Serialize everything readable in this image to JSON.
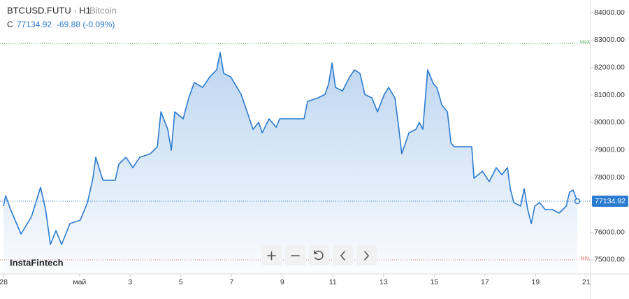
{
  "chart_data": {
    "type": "line",
    "title": "BTCUSD.FUTU · H1",
    "subtitle": "Bitcoin",
    "price_label": "C",
    "last_price": 77134.92,
    "last_price_label": "77134.92",
    "change": "-69.88 (-0.09%)",
    "watermark": "InstaFintech",
    "max_line": {
      "label": "MAX",
      "value": 82880,
      "color": "#4caf50"
    },
    "min_line": {
      "label": "MIN",
      "value": 75000,
      "color": "#e57373"
    },
    "xlim": [
      -0.14,
      23.17
    ],
    "ylim": [
      74490,
      84460
    ],
    "xticks": [
      {
        "value": 0,
        "label": "28"
      },
      {
        "value": 3,
        "label": "май"
      },
      {
        "value": 5,
        "label": "3"
      },
      {
        "value": 7,
        "label": "5"
      },
      {
        "value": 9,
        "label": "7"
      },
      {
        "value": 11,
        "label": "9"
      },
      {
        "value": 13,
        "label": "11"
      },
      {
        "value": 15,
        "label": "13"
      },
      {
        "value": 17,
        "label": "15"
      },
      {
        "value": 19,
        "label": "17"
      },
      {
        "value": 21,
        "label": "19"
      },
      {
        "value": 23,
        "label": "21"
      }
    ],
    "yticks": [
      {
        "value": 75000,
        "label": "75000.00"
      },
      {
        "value": 76000,
        "label": "76000.00"
      },
      {
        "value": 77000,
        "label": "77000.00"
      },
      {
        "value": 78000,
        "label": "78000.00"
      },
      {
        "value": 79000,
        "label": "79000.00"
      },
      {
        "value": 80000,
        "label": "80000.00"
      },
      {
        "value": 81000,
        "label": "81000.00"
      },
      {
        "value": 82000,
        "label": "82000.00"
      },
      {
        "value": 83000,
        "label": "83000.00"
      },
      {
        "value": 84000,
        "label": "84000.00"
      }
    ],
    "grid": false,
    "series": [
      {
        "color": "#2b7bd0",
        "x": [
          0,
          0.08,
          0.28,
          0.69,
          1.1,
          1.46,
          1.66,
          1.85,
          2.07,
          2.29,
          2.62,
          3.03,
          3.31,
          3.53,
          3.64,
          3.92,
          4.41,
          4.55,
          4.83,
          5.1,
          5.38,
          5.79,
          6.07,
          6.21,
          6.48,
          6.62,
          6.76,
          7.09,
          7.31,
          7.53,
          7.86,
          8.14,
          8.41,
          8.55,
          8.69,
          8.97,
          9.38,
          9.66,
          9.85,
          10.07,
          10.21,
          10.48,
          10.76,
          10.9,
          11.86,
          12.0,
          12.41,
          12.69,
          12.83,
          12.97,
          13.1,
          13.38,
          13.66,
          13.85,
          14.07,
          14.26,
          14.54,
          14.76,
          15.03,
          15.2,
          15.45,
          15.59,
          15.72,
          16.0,
          16.28,
          16.41,
          16.55,
          16.74,
          16.97,
          17.1,
          17.3,
          17.52,
          17.66,
          17.79,
          18.48,
          18.57,
          18.9,
          19.17,
          19.45,
          19.67,
          19.89,
          20.0,
          20.14,
          20.41,
          20.55,
          20.69,
          20.83,
          20.97,
          21.16,
          21.38,
          21.66,
          21.93,
          22.21,
          22.34,
          22.48,
          22.65
        ],
        "values": [
          76956,
          77337,
          76829,
          75939,
          76574,
          77642,
          76829,
          75557,
          76066,
          75557,
          76320,
          76447,
          77083,
          77973,
          78736,
          77897,
          77897,
          78482,
          78736,
          78355,
          78736,
          78863,
          79117,
          80389,
          79753,
          78990,
          80389,
          80135,
          80898,
          81457,
          81279,
          81660,
          81915,
          82550,
          81788,
          81660,
          81025,
          80262,
          79753,
          80007,
          79626,
          80135,
          79829,
          80135,
          80135,
          80770,
          80898,
          81025,
          81406,
          82169,
          81279,
          81152,
          81660,
          81915,
          81788,
          81025,
          80898,
          80389,
          81025,
          81279,
          80898,
          79880,
          78863,
          79626,
          79753,
          80007,
          79753,
          81915,
          81406,
          81279,
          80643,
          80389,
          79245,
          79117,
          79117,
          77973,
          78227,
          77846,
          78355,
          78100,
          78355,
          77592,
          77083,
          76956,
          77592,
          76829,
          76320,
          76956,
          77083,
          76829,
          76829,
          76702,
          76956,
          77464,
          77541,
          77134.92
        ]
      }
    ]
  }
}
